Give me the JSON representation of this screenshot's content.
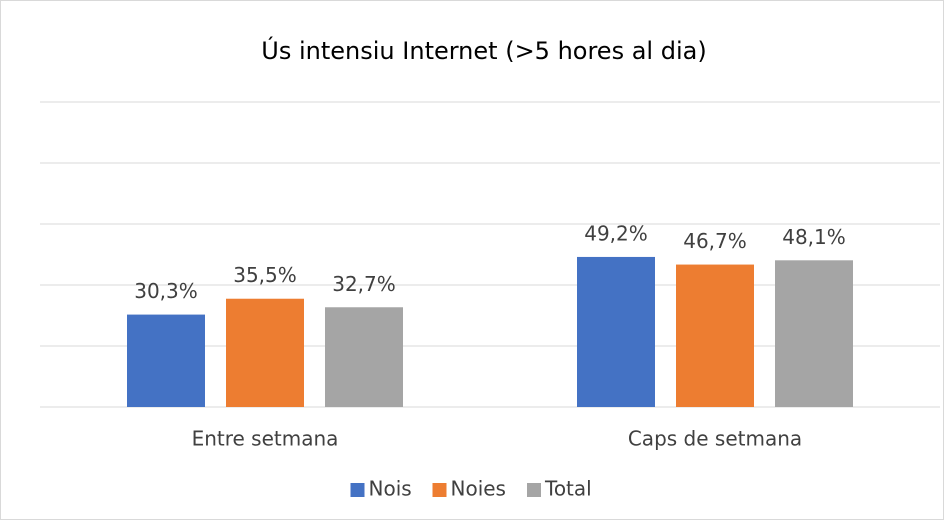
{
  "chart_data": {
    "type": "bar",
    "title": "Ús intensiu Internet (>5 hores al dia)",
    "categories": [
      "Entre setmana",
      "Caps de setmana"
    ],
    "series": [
      {
        "name": "Nois",
        "color": "#4472c4",
        "values": [
          30.3,
          49.2
        ],
        "value_labels": [
          "30,3%",
          "49,2%"
        ]
      },
      {
        "name": "Noies",
        "color": "#ed7d31",
        "values": [
          35.5,
          46.7
        ],
        "value_labels": [
          "35,5%",
          "46,7%"
        ]
      },
      {
        "name": "Total",
        "color": "#a5a5a5",
        "values": [
          32.7,
          48.1
        ],
        "value_labels": [
          "32,7%",
          "48,1%"
        ]
      }
    ],
    "ylim": [
      0,
      100
    ],
    "yticks": [
      0,
      20,
      40,
      60,
      80,
      100
    ],
    "grid": true,
    "legend": "bottom"
  }
}
